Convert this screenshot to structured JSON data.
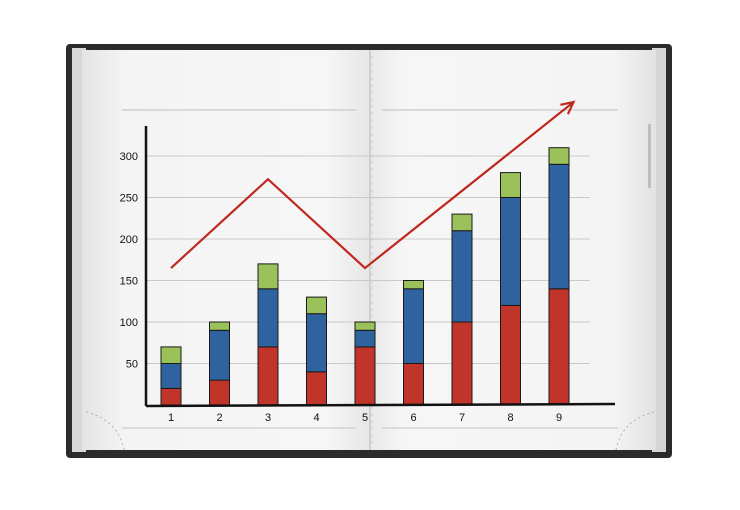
{
  "chart_data": {
    "type": "bar",
    "stacked": true,
    "categories": [
      "1",
      "2",
      "3",
      "4",
      "5",
      "6",
      "7",
      "8",
      "9"
    ],
    "series": [
      {
        "color": "#c0342a",
        "values": [
          20,
          30,
          70,
          40,
          70,
          50,
          100,
          120,
          140
        ]
      },
      {
        "color": "#2f63a0",
        "values": [
          30,
          60,
          70,
          70,
          20,
          90,
          110,
          130,
          150
        ]
      },
      {
        "color": "#9bc25a",
        "values": [
          20,
          10,
          30,
          20,
          10,
          10,
          20,
          30,
          20
        ]
      }
    ],
    "yticks": [
      50,
      100,
      150,
      200,
      250,
      300
    ],
    "ylim": [
      0,
      320
    ],
    "grid": true,
    "title": "",
    "xlabel": "",
    "ylabel": "",
    "trend_line": {
      "color": "#c0281e",
      "points": [
        [
          1,
          165
        ],
        [
          3,
          272
        ],
        [
          5,
          165
        ],
        [
          9.3,
          365
        ]
      ],
      "arrow_end": true
    }
  }
}
